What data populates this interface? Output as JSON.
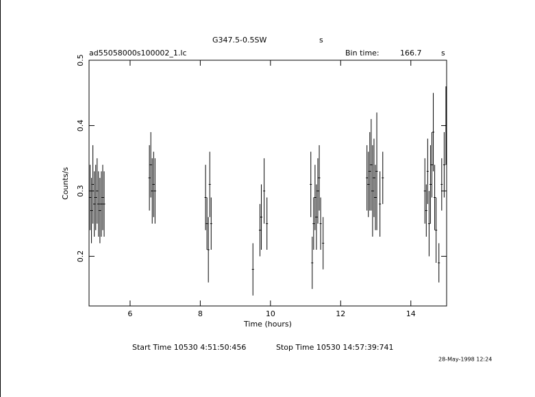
{
  "chart_data": {
    "type": "errorbar",
    "title": "G347.5-0.5SW",
    "title_suffix": "s",
    "file_name": "ad55058000s100002_1.lc",
    "bin_time_label": "Bin time:",
    "bin_time": 166.7,
    "bin_time_unit": "s",
    "x_label": "Time (hours)",
    "y_label": "Counts/s",
    "start_label": "Start Time 10530  4:51:50:456",
    "stop_label": "Stop Time 10530  14:57:39:741",
    "date": "28-May-1998 12:24",
    "xlim": [
      4.83,
      15.02
    ],
    "ylim": [
      0.124,
      0.5
    ],
    "xticks": [
      6,
      8,
      10,
      12,
      14
    ],
    "yticks": [
      0.2,
      0.3,
      0.4,
      0.5
    ],
    "color": "#000000",
    "series": [
      {
        "x": [
          4.86,
          4.9,
          4.94,
          4.98,
          5.02,
          5.06,
          5.1,
          5.14,
          5.18,
          5.22,
          5.26,
          6.55,
          6.59,
          6.63,
          6.67,
          6.71,
          8.15,
          8.19,
          8.23,
          8.27,
          8.31,
          9.5,
          9.7,
          9.74,
          9.82,
          9.9,
          11.15,
          11.19,
          11.23,
          11.27,
          11.31,
          11.35,
          11.39,
          11.43,
          11.5,
          12.75,
          12.79,
          12.83,
          12.87,
          12.91,
          12.95,
          12.99,
          13.03,
          13.12,
          13.2,
          14.4,
          14.44,
          14.48,
          14.52,
          14.56,
          14.6,
          14.64,
          14.68,
          14.72,
          14.8,
          14.88,
          14.95,
          15.0
        ],
        "values": [
          0.29,
          0.27,
          0.31,
          0.28,
          0.29,
          0.3,
          0.28,
          0.27,
          0.28,
          0.29,
          0.28,
          0.32,
          0.34,
          0.3,
          0.31,
          0.3,
          0.29,
          0.25,
          0.21,
          0.31,
          0.25,
          0.18,
          0.24,
          0.26,
          0.3,
          0.25,
          0.31,
          0.19,
          0.25,
          0.29,
          0.26,
          0.3,
          0.32,
          0.25,
          0.22,
          0.32,
          0.31,
          0.33,
          0.34,
          0.3,
          0.32,
          0.29,
          0.33,
          0.28,
          0.32,
          0.3,
          0.27,
          0.33,
          0.25,
          0.31,
          0.34,
          0.39,
          0.29,
          0.24,
          0.19,
          0.31,
          0.34,
          0.4
        ],
        "errors": [
          0.05,
          0.05,
          0.06,
          0.05,
          0.05,
          0.05,
          0.05,
          0.05,
          0.05,
          0.05,
          0.05,
          0.05,
          0.05,
          0.05,
          0.05,
          0.05,
          0.05,
          0.04,
          0.05,
          0.05,
          0.04,
          0.04,
          0.04,
          0.05,
          0.05,
          0.04,
          0.05,
          0.04,
          0.04,
          0.05,
          0.05,
          0.05,
          0.05,
          0.04,
          0.04,
          0.05,
          0.05,
          0.06,
          0.07,
          0.07,
          0.06,
          0.05,
          0.09,
          0.05,
          0.04,
          0.05,
          0.04,
          0.05,
          0.05,
          0.06,
          0.05,
          0.06,
          0.05,
          0.05,
          0.03,
          0.04,
          0.05,
          0.06
        ]
      }
    ]
  }
}
